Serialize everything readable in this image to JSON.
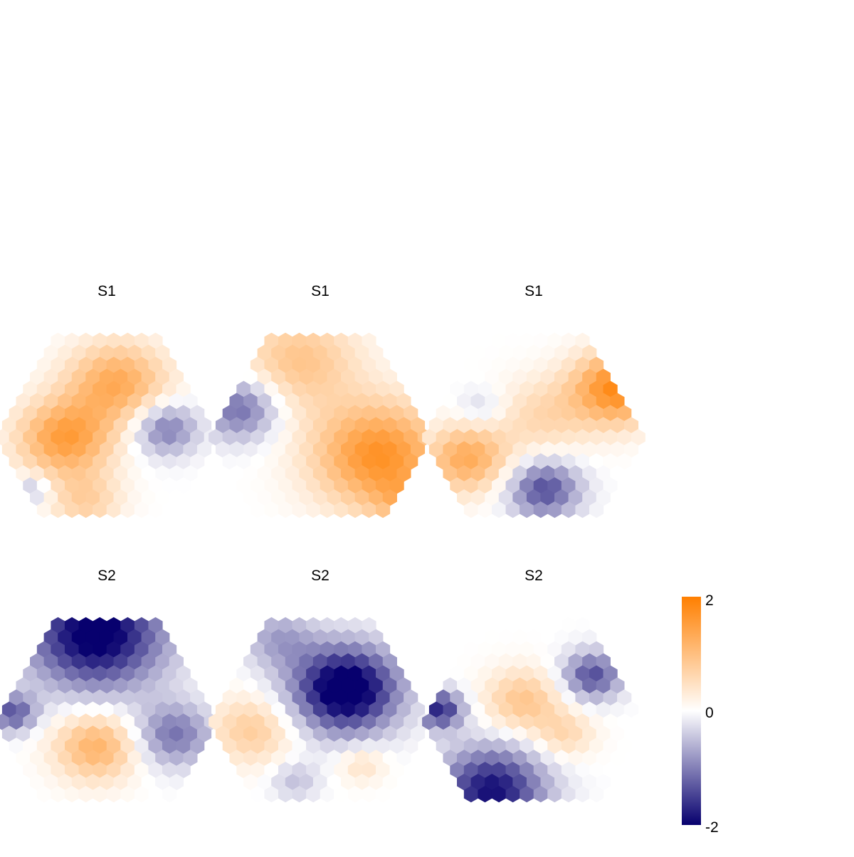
{
  "chart_data": {
    "type": "heatmap",
    "grid": "hexagonal",
    "legend_position": "right",
    "color_scale": {
      "min": -2,
      "mid": 0,
      "max": 2,
      "low_color": "#07006e",
      "mid_color": "#ffffff",
      "high_color": "#ff7f00",
      "tick_labels": [
        "2",
        "0",
        "-2"
      ]
    },
    "panels": [
      {
        "title": "S1",
        "blobs": [
          {
            "x": 0.55,
            "y": 0.25,
            "amp": 1.3,
            "s": 0.17
          },
          {
            "x": 0.3,
            "y": 0.58,
            "amp": 1.5,
            "s": 0.16
          },
          {
            "x": 0.78,
            "y": 0.52,
            "amp": -1.1,
            "s": 0.11
          },
          {
            "x": 0.15,
            "y": 0.88,
            "amp": -0.6,
            "s": 0.06
          },
          {
            "x": 0.4,
            "y": 0.95,
            "amp": 0.7,
            "s": 0.12
          }
        ]
      },
      {
        "title": "S1",
        "blobs": [
          {
            "x": 0.12,
            "y": 0.4,
            "amp": -1.2,
            "s": 0.13
          },
          {
            "x": 0.78,
            "y": 0.68,
            "amp": 1.7,
            "s": 0.22
          },
          {
            "x": 0.4,
            "y": 0.12,
            "amp": 0.9,
            "s": 0.2
          },
          {
            "x": 0.9,
            "y": 0.96,
            "amp": 0.6,
            "s": 0.1
          }
        ]
      },
      {
        "title": "S1",
        "blobs": [
          {
            "x": 0.9,
            "y": 0.28,
            "amp": 1.8,
            "s": 0.15
          },
          {
            "x": 0.55,
            "y": 0.88,
            "amp": -1.4,
            "s": 0.12
          },
          {
            "x": 0.18,
            "y": 0.7,
            "amp": 1.3,
            "s": 0.14
          },
          {
            "x": 0.25,
            "y": 0.4,
            "amp": -0.4,
            "s": 0.08
          },
          {
            "x": 0.55,
            "y": 0.45,
            "amp": 0.6,
            "s": 0.16
          }
        ]
      },
      {
        "title": "S2",
        "blobs": [
          {
            "x": 0.45,
            "y": 0.05,
            "amp": -2.2,
            "s": 0.23
          },
          {
            "x": 0.45,
            "y": 0.72,
            "amp": 1.2,
            "s": 0.14
          },
          {
            "x": 0.05,
            "y": 0.52,
            "amp": -1.3,
            "s": 0.08
          },
          {
            "x": 0.82,
            "y": 0.65,
            "amp": -1.1,
            "s": 0.13
          }
        ]
      },
      {
        "title": "S2",
        "blobs": [
          {
            "x": 0.62,
            "y": 0.38,
            "amp": -2.4,
            "s": 0.18
          },
          {
            "x": 0.18,
            "y": 0.62,
            "amp": 0.8,
            "s": 0.14
          },
          {
            "x": 0.38,
            "y": 0.92,
            "amp": -0.5,
            "s": 0.08
          },
          {
            "x": 0.7,
            "y": 0.82,
            "amp": 0.5,
            "s": 0.08
          },
          {
            "x": 0.3,
            "y": 0.08,
            "amp": -0.7,
            "s": 0.12
          }
        ]
      },
      {
        "title": "S2",
        "blobs": [
          {
            "x": 0.45,
            "y": 0.45,
            "amp": 0.9,
            "s": 0.13
          },
          {
            "x": 0.65,
            "y": 0.65,
            "amp": 0.6,
            "s": 0.1
          },
          {
            "x": 0.05,
            "y": 0.5,
            "amp": -1.7,
            "s": 0.08
          },
          {
            "x": 0.78,
            "y": 0.3,
            "amp": -1.4,
            "s": 0.1
          },
          {
            "x": 0.3,
            "y": 0.98,
            "amp": -1.9,
            "s": 0.18
          }
        ]
      }
    ]
  }
}
